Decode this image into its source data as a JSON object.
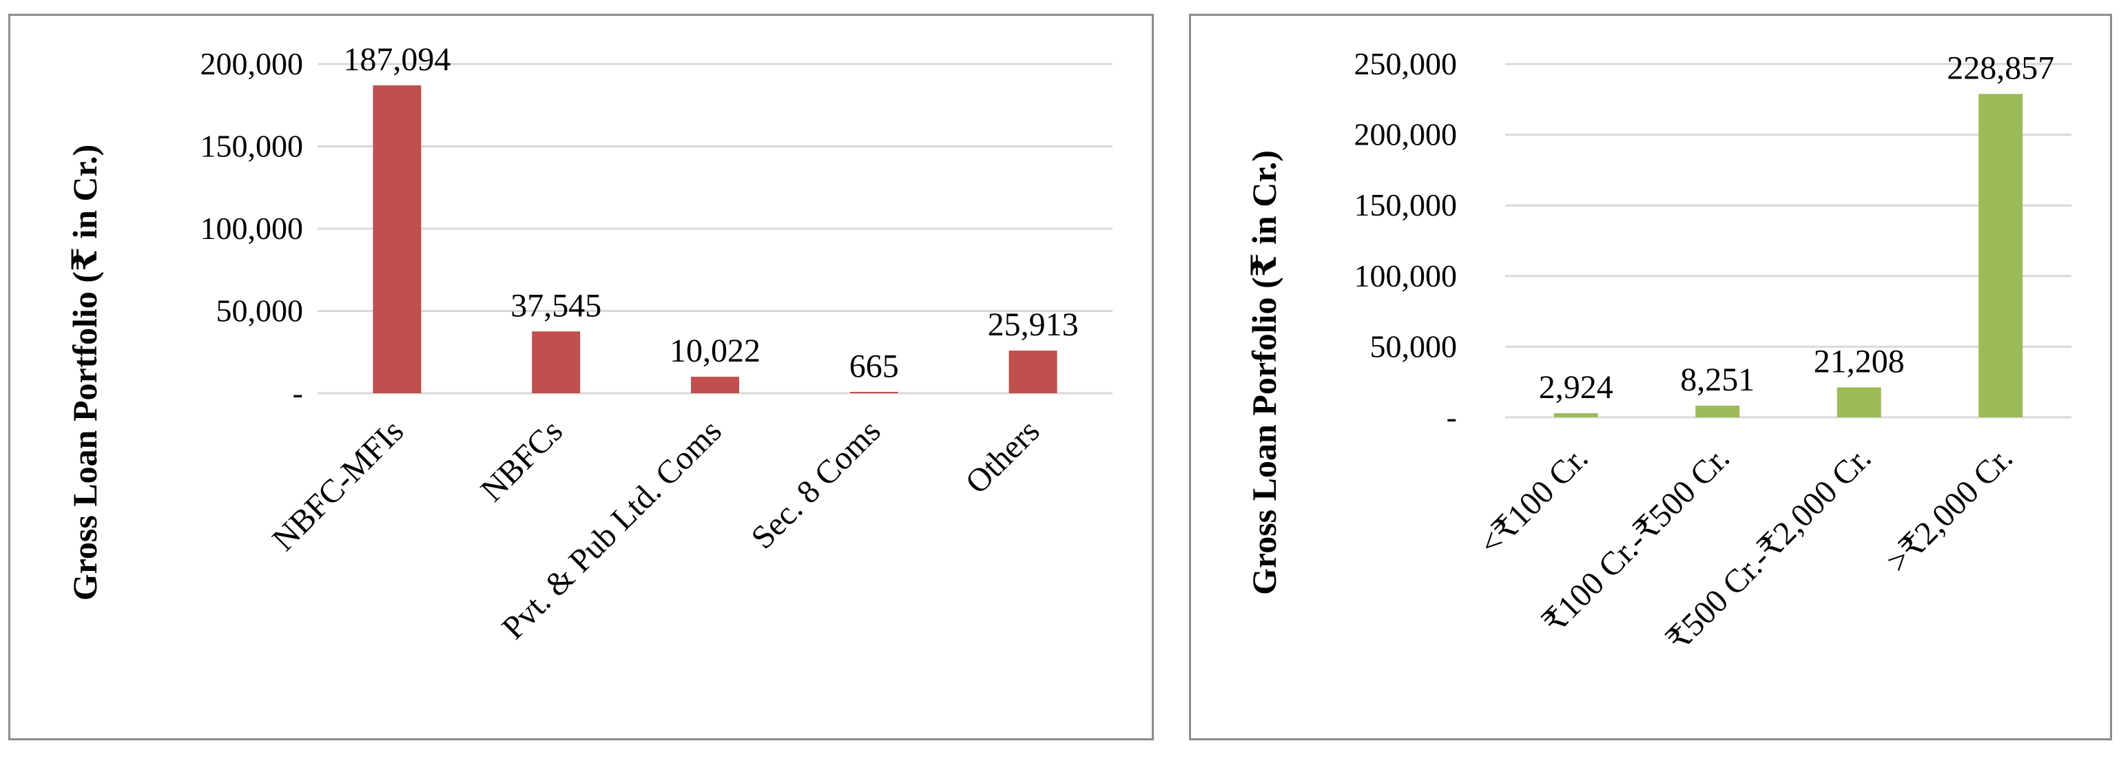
{
  "colors": {
    "left_bars": "#c0504d",
    "right_bars": "#9bbb59",
    "border": "#8c8c8c",
    "grid": "#d9d9d9"
  },
  "chart_data": [
    {
      "type": "bar",
      "ylabel": "Gross Loan Portfolio (₹ in Cr.)",
      "categories": [
        "NBFC-MFIs",
        "NBFCs",
        "Pvt. & Pub Ltd. Coms",
        "Sec. 8 Coms",
        "Others"
      ],
      "values": [
        187094,
        37545,
        10022,
        665,
        25913
      ],
      "data_labels": [
        "187,094",
        "37,545",
        "10,022",
        "665",
        "25,913"
      ],
      "yticks": [
        "-",
        "50,000",
        "100,000",
        "150,000",
        "200,000"
      ],
      "ylim": [
        0,
        200000
      ],
      "grid": true
    },
    {
      "type": "bar",
      "ylabel": "Gross Loan Porfolio (₹ in Cr.)",
      "categories": [
        "<₹100 Cr.",
        "₹100 Cr.-₹500 Cr.",
        "₹500 Cr.-₹2,000 Cr.",
        ">₹2,000 Cr."
      ],
      "values": [
        2924,
        8251,
        21208,
        228857
      ],
      "data_labels": [
        "2,924",
        "8,251",
        "21,208",
        "228,857"
      ],
      "yticks": [
        "-",
        "50,000",
        "100,000",
        "150,000",
        "200,000",
        "250,000"
      ],
      "ylim": [
        0,
        250000
      ],
      "grid": true
    }
  ]
}
